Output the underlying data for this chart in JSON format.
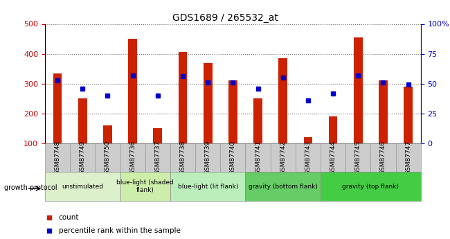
{
  "title": "GDS1689 / 265532_at",
  "samples": [
    "GSM87748",
    "GSM87749",
    "GSM87750",
    "GSM87736",
    "GSM87737",
    "GSM87738",
    "GSM87739",
    "GSM87740",
    "GSM87741",
    "GSM87742",
    "GSM87743",
    "GSM87744",
    "GSM87745",
    "GSM87746",
    "GSM87747"
  ],
  "counts": [
    335,
    250,
    160,
    450,
    150,
    405,
    370,
    310,
    250,
    385,
    120,
    190,
    455,
    310,
    290
  ],
  "percentiles": [
    53,
    46,
    40,
    57,
    40,
    56,
    51,
    51,
    46,
    55,
    36,
    42,
    57,
    51,
    49
  ],
  "groups": [
    {
      "label": "unstimulated",
      "start": 0,
      "end": 3,
      "color": "#ddf0cc"
    },
    {
      "label": "blue-light (shaded\nflank)",
      "start": 3,
      "end": 5,
      "color": "#cceeaa"
    },
    {
      "label": "blue-light (lit flank)",
      "start": 5,
      "end": 8,
      "color": "#bbeebb"
    },
    {
      "label": "gravity (bottom flank)",
      "start": 8,
      "end": 11,
      "color": "#66cc66"
    },
    {
      "label": "gravity (top flank)",
      "start": 11,
      "end": 15,
      "color": "#44cc44"
    }
  ],
  "bar_color": "#cc2200",
  "marker_color": "#0000cc",
  "ymin": 100,
  "ymax": 500,
  "yticks": [
    100,
    200,
    300,
    400,
    500
  ],
  "y2ticks": [
    0,
    25,
    50,
    75,
    100
  ],
  "bar_width": 0.35,
  "title_fontsize": 10,
  "axis_label_color_left": "#cc0000",
  "axis_label_color_right": "#0000cc",
  "legend_count_label": "count",
  "legend_pct_label": "percentile rank within the sample",
  "tick_bg_color": "#cccccc",
  "tick_bg_edge": "#999999",
  "group_edge_color": "#888888"
}
